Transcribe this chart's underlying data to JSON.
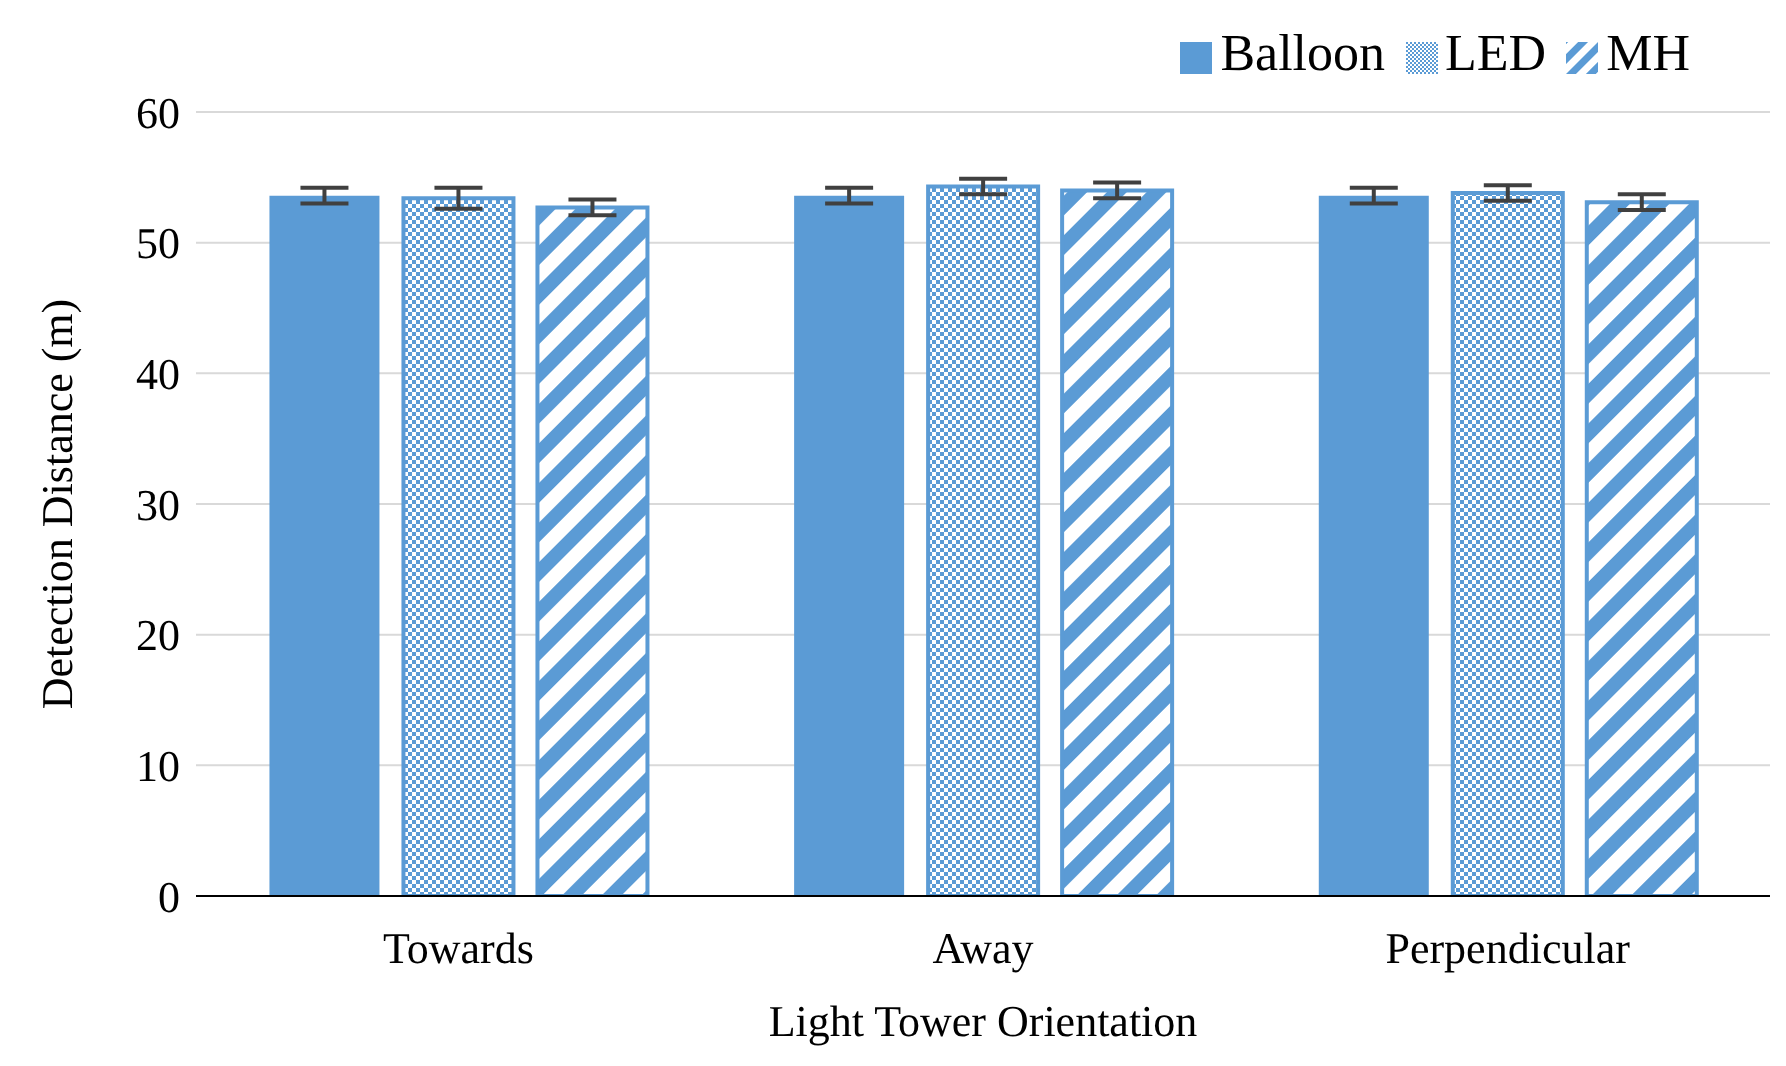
{
  "chart_data": {
    "type": "bar",
    "xlabel": "Light Tower Orientation",
    "ylabel": "Detection Distance (m)",
    "categories": [
      "Towards",
      "Away",
      "Perpendicular"
    ],
    "series": [
      {
        "name": "Balloon",
        "color": "#5b9bd5",
        "values": [
          53.6,
          53.6,
          53.6
        ],
        "errors": [
          0.6,
          0.6,
          0.6
        ]
      },
      {
        "name": "LED",
        "color": "#5b9bd5",
        "values": [
          53.4,
          54.3,
          53.8
        ],
        "errors": [
          0.8,
          0.6,
          0.6
        ]
      },
      {
        "name": "MH",
        "color": "#5b9bd5",
        "values": [
          52.7,
          54.0,
          53.1
        ],
        "errors": [
          0.6,
          0.6,
          0.6
        ]
      }
    ],
    "ylim": [
      0,
      60
    ],
    "yticks": [
      0,
      10,
      20,
      30,
      40,
      50,
      60
    ],
    "grid": "y",
    "legend": "top right"
  }
}
